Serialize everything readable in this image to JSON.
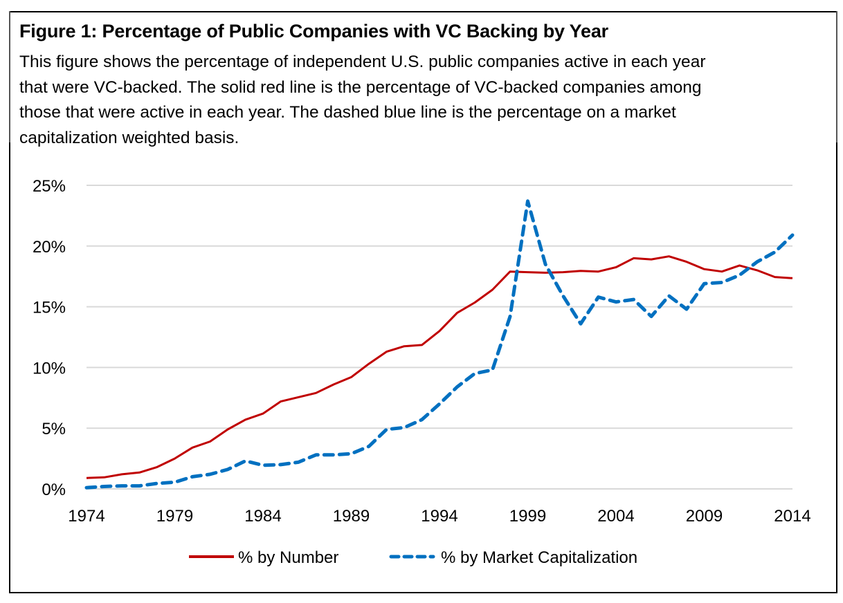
{
  "figure": {
    "title": "Figure 1: Percentage of Public Companies with VC Backing by Year",
    "caption_lines": [
      "This figure shows the percentage of independent U.S. public companies active in each year",
      "that were VC-backed. The solid red line is the percentage of VC-backed companies among",
      "those that were active in each year. The dashed blue line is the percentage on a market",
      "capitalization weighted basis."
    ]
  },
  "chart_data": {
    "type": "line",
    "title": "Figure 1: Percentage of Public Companies with VC Backing by Year",
    "xlabel": "",
    "ylabel": "",
    "x": [
      1974,
      1975,
      1976,
      1977,
      1978,
      1979,
      1980,
      1981,
      1982,
      1983,
      1984,
      1985,
      1986,
      1987,
      1988,
      1989,
      1990,
      1991,
      1992,
      1993,
      1994,
      1995,
      1996,
      1997,
      1998,
      1999,
      2000,
      2001,
      2002,
      2003,
      2004,
      2005,
      2006,
      2007,
      2008,
      2009,
      2010,
      2011,
      2012,
      2013,
      2014
    ],
    "x_ticks": [
      "1974",
      "1979",
      "1984",
      "1989",
      "1994",
      "1999",
      "2004",
      "2009",
      "2014"
    ],
    "x_tick_values": [
      1974,
      1979,
      1984,
      1989,
      1994,
      1999,
      2004,
      2009,
      2014
    ],
    "y_ticks": [
      "0%",
      "5%",
      "10%",
      "15%",
      "20%",
      "25%"
    ],
    "y_tick_values": [
      0,
      5,
      10,
      15,
      20,
      25
    ],
    "ylim": [
      0,
      25
    ],
    "xlim": [
      1974,
      2014
    ],
    "grid": "horizontal",
    "legend_position": "bottom-center",
    "series": [
      {
        "name": "% by Number",
        "style": "solid",
        "color": "#C00000",
        "values": [
          0.9,
          0.95,
          1.2,
          1.35,
          1.8,
          2.5,
          3.4,
          3.9,
          4.9,
          5.7,
          6.2,
          7.2,
          7.55,
          7.9,
          8.6,
          9.2,
          10.3,
          11.3,
          11.75,
          11.85,
          13.0,
          14.5,
          15.35,
          16.4,
          17.9,
          17.85,
          17.8,
          17.85,
          17.95,
          17.9,
          18.25,
          19.0,
          18.9,
          19.15,
          18.7,
          18.1,
          17.9,
          18.4,
          18.0,
          17.45,
          17.35
        ]
      },
      {
        "name": "% by Market Capitalization",
        "style": "dashed",
        "color": "#0070C0",
        "values": [
          0.1,
          0.2,
          0.25,
          0.25,
          0.45,
          0.55,
          1.0,
          1.2,
          1.6,
          2.3,
          1.95,
          2.0,
          2.2,
          2.8,
          2.8,
          2.9,
          3.5,
          4.9,
          5.05,
          5.7,
          7.0,
          8.4,
          9.5,
          9.8,
          14.2,
          23.7,
          18.5,
          15.9,
          13.6,
          15.8,
          15.4,
          15.6,
          14.2,
          15.9,
          14.8,
          16.9,
          17.0,
          17.6,
          18.7,
          19.5,
          20.9
        ]
      }
    ]
  },
  "colors": {
    "gridline": "#D9D9D9",
    "frame": "#000000"
  }
}
